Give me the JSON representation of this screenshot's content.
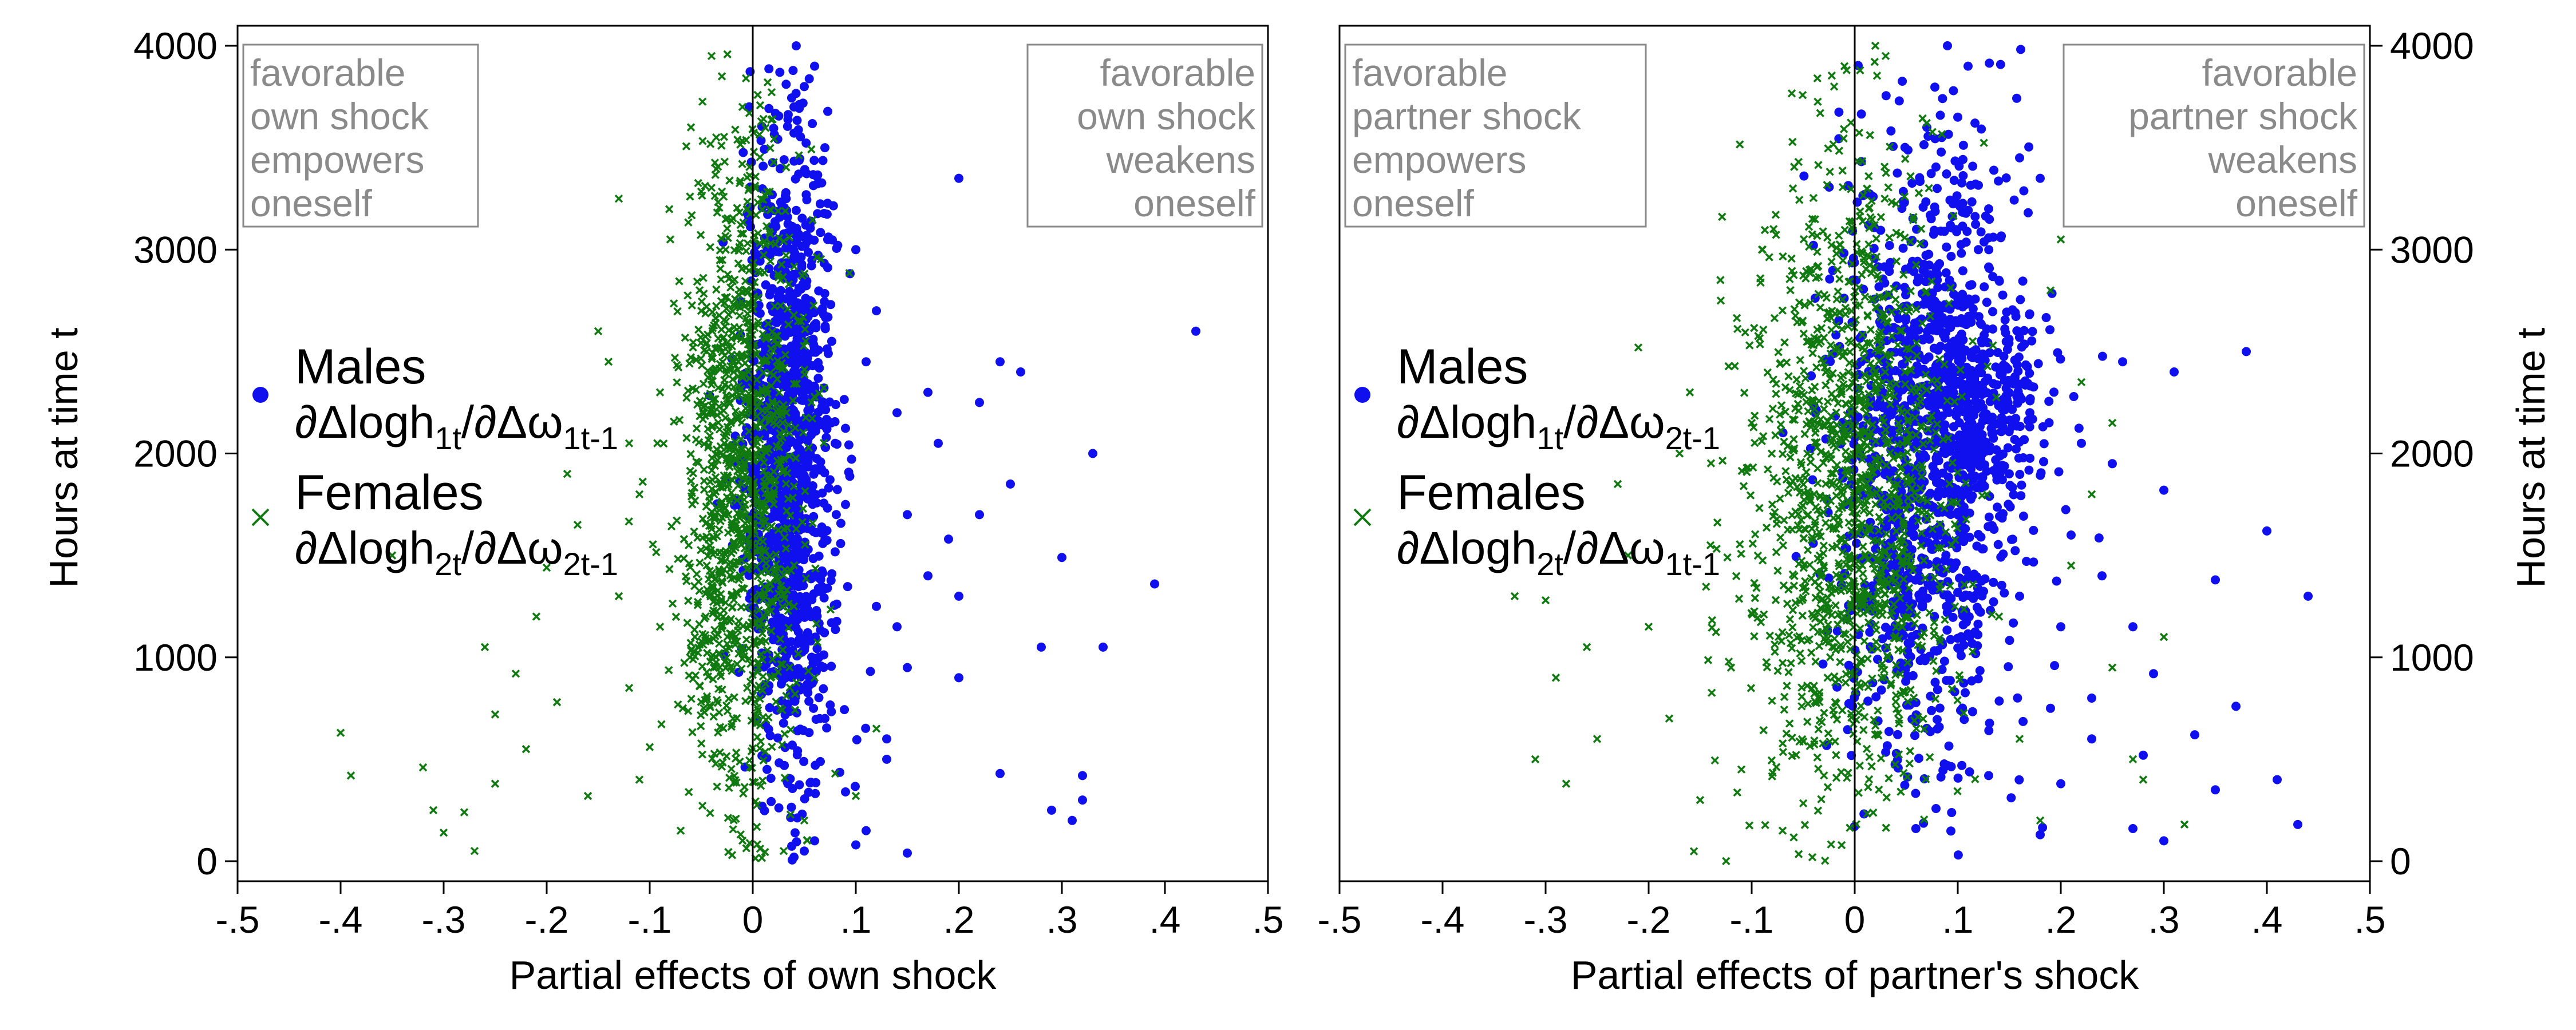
{
  "figure": {
    "marker_colors": {
      "males": "#1010ee",
      "females": "#107a10"
    },
    "axis_color": "#000000",
    "annotation_color": "#8a8a8a"
  },
  "chart_data": [
    {
      "type": "scatter",
      "id": "left",
      "xlabel": "Partial effects of own shock",
      "ylabel": "Hours at time t",
      "ylabel_side": "left",
      "xlim": [
        -0.5,
        0.5
      ],
      "ylim": [
        0,
        4000
      ],
      "xticks": [
        -0.5,
        -0.4,
        -0.3,
        -0.2,
        -0.1,
        0,
        0.1,
        0.2,
        0.3,
        0.4,
        0.5
      ],
      "xtick_labels": [
        "-.5",
        "-.4",
        "-.3",
        "-.2",
        "-.1",
        "0",
        ".1",
        ".2",
        ".3",
        ".4",
        ".5"
      ],
      "yticks": [
        0,
        1000,
        2000,
        3000,
        4000
      ],
      "ytick_labels": [
        "0",
        "1000",
        "2000",
        "3000",
        "4000"
      ],
      "reference_line_x": 0,
      "annotations": {
        "left_box": [
          "favorable",
          "own shock",
          "empowers",
          "oneself"
        ],
        "right_box": [
          "favorable",
          "own shock",
          "weakens",
          "oneself"
        ]
      },
      "legend": {
        "position": "center-left",
        "males": {
          "label": "Males",
          "sub_main": "∂Δlogh",
          "sub_a": "1t",
          "sub_mid": "/∂Δω",
          "sub_b": "1t-1"
        },
        "females": {
          "label": "Females",
          "sub_main": "∂Δlogh",
          "sub_a": "2t",
          "sub_mid": "/∂Δω",
          "sub_b": "2t-1"
        }
      },
      "series": [
        {
          "name": "Males",
          "marker": "dot",
          "color": "#1010ee",
          "points": [
            [
              0.43,
              2600
            ],
            [
              0.39,
              1360
            ],
            [
              0.32,
              300
            ],
            [
              0.33,
              2000
            ],
            [
              0.3,
              1490
            ],
            [
              0.28,
              1050
            ],
            [
              0.29,
              250
            ],
            [
              0.32,
              420
            ],
            [
              0.26,
              2400
            ],
            [
              0.24,
              2450
            ],
            [
              0.22,
              2250
            ],
            [
              0.2,
              900
            ],
            [
              0.2,
              1300
            ],
            [
              0.19,
              1580
            ],
            [
              0.17,
              1400
            ],
            [
              0.15,
              950
            ],
            [
              0.13,
              600
            ],
            [
              0.15,
              40
            ],
            [
              0.12,
              1250
            ],
            [
              0.1,
              80
            ],
            [
              0.09,
              340
            ],
            [
              0.11,
              150
            ],
            [
              0.08,
              2050
            ],
            [
              0.07,
              700
            ],
            [
              0.09,
              1750
            ],
            [
              0.24,
              430
            ],
            [
              0.34,
              1050
            ],
            [
              0.31,
              200
            ],
            [
              0.18,
              2050
            ],
            [
              0.22,
              1700
            ],
            [
              0.14,
              2200
            ],
            [
              0.12,
              2700
            ],
            [
              0.1,
              3000
            ],
            [
              0.2,
              3350
            ],
            [
              0.14,
              1150
            ],
            [
              0.25,
              1850
            ],
            [
              0.17,
              2300
            ],
            [
              0.06,
              3900
            ],
            [
              0.05,
              3800
            ],
            [
              0.04,
              3700
            ],
            [
              0.07,
              3500
            ],
            [
              0.15,
              1700
            ],
            [
              0.11,
              2450
            ],
            [
              0.13,
              500
            ],
            [
              0.06,
              100
            ],
            [
              0.05,
              50
            ],
            [
              0.04,
              20
            ]
          ],
          "cloud": {
            "x_mean": 0.035,
            "x_sd": 0.022,
            "y_mean": 2000,
            "y_sd": 780,
            "n": 1300
          }
        },
        {
          "name": "Females",
          "marker": "x",
          "color": "#107a10",
          "points": [
            [
              -0.4,
              630
            ],
            [
              -0.39,
              420
            ],
            [
              -0.32,
              460
            ],
            [
              -0.31,
              250
            ],
            [
              -0.3,
              140
            ],
            [
              -0.28,
              240
            ],
            [
              -0.27,
              50
            ],
            [
              -0.25,
              380
            ],
            [
              -0.25,
              720
            ],
            [
              -0.23,
              920
            ],
            [
              -0.21,
              1200
            ],
            [
              -0.2,
              1440
            ],
            [
              -0.19,
              780
            ],
            [
              -0.17,
              1650
            ],
            [
              -0.16,
              320
            ],
            [
              -0.13,
              3250
            ],
            [
              -0.14,
              2450
            ],
            [
              -0.12,
              2050
            ],
            [
              -0.11,
              1800
            ],
            [
              -0.1,
              560
            ],
            [
              -0.09,
              2300
            ],
            [
              -0.09,
              1150
            ],
            [
              -0.08,
              3050
            ],
            [
              -0.06,
              3600
            ],
            [
              -0.05,
              2700
            ],
            [
              -0.07,
              150
            ],
            [
              0.06,
              900
            ],
            [
              0.08,
              430
            ],
            [
              0.1,
              320
            ],
            [
              0.12,
              650
            ],
            [
              -0.35,
              1500
            ],
            [
              -0.26,
              1050
            ],
            [
              -0.22,
              550
            ],
            [
              -0.18,
              1900
            ],
            [
              -0.15,
              2600
            ],
            [
              -0.13,
              1300
            ],
            [
              -0.12,
              850
            ],
            [
              -0.11,
              400
            ],
            [
              -0.04,
              3950
            ],
            [
              -0.03,
              3850
            ],
            [
              -0.01,
              3700
            ],
            [
              0.04,
              1250
            ],
            [
              0.05,
              200
            ],
            [
              0.03,
              50
            ],
            [
              -0.02,
              30
            ]
          ],
          "cloud": {
            "x_mean": -0.012,
            "x_sd": 0.03,
            "y_mean": 1850,
            "y_sd": 820,
            "n": 1300
          }
        }
      ]
    },
    {
      "type": "scatter",
      "id": "right",
      "xlabel": "Partial effects of partner's shock",
      "ylabel": "Hours at time t",
      "ylabel_side": "right",
      "xlim": [
        -0.5,
        0.5
      ],
      "ylim": [
        0,
        4000
      ],
      "xticks": [
        -0.5,
        -0.4,
        -0.3,
        -0.2,
        -0.1,
        0,
        0.1,
        0.2,
        0.3,
        0.4,
        0.5
      ],
      "xtick_labels": [
        "-.5",
        "-.4",
        "-.3",
        "-.2",
        "-.1",
        "0",
        ".1",
        ".2",
        ".3",
        ".4",
        ".5"
      ],
      "yticks": [
        0,
        1000,
        2000,
        3000,
        4000
      ],
      "ytick_labels": [
        "0",
        "1000",
        "2000",
        "3000",
        "4000"
      ],
      "reference_line_x": 0,
      "annotations": {
        "left_box": [
          "favorable",
          "partner shock",
          "empowers",
          "oneself"
        ],
        "right_box": [
          "favorable",
          "partner shock",
          "weakens",
          "oneself"
        ]
      },
      "legend": {
        "position": "center-left",
        "males": {
          "label": "Males",
          "sub_main": "∂Δlogh",
          "sub_a": "1t",
          "sub_mid": "/∂Δω",
          "sub_b": "2t-1"
        },
        "females": {
          "label": "Females",
          "sub_main": "∂Δlogh",
          "sub_a": "2t",
          "sub_mid": "/∂Δω",
          "sub_b": "1t-1"
        }
      },
      "series": [
        {
          "name": "Males",
          "marker": "dot",
          "color": "#1010ee",
          "points": [
            [
              0.44,
              1300
            ],
            [
              0.43,
              180
            ],
            [
              0.41,
              400
            ],
            [
              0.4,
              1620
            ],
            [
              0.38,
              2500
            ],
            [
              0.37,
              760
            ],
            [
              0.35,
              1380
            ],
            [
              0.33,
              620
            ],
            [
              0.31,
              2400
            ],
            [
              0.3,
              1820
            ],
            [
              0.29,
              920
            ],
            [
              0.28,
              520
            ],
            [
              0.27,
              1150
            ],
            [
              0.26,
              2450
            ],
            [
              0.24,
              1400
            ],
            [
              0.23,
              800
            ],
            [
              0.22,
              2050
            ],
            [
              0.21,
              1600
            ],
            [
              0.2,
              1150
            ],
            [
              0.18,
              3350
            ],
            [
              0.17,
              2200
            ],
            [
              0.16,
              3450
            ],
            [
              0.15,
              1900
            ],
            [
              0.14,
              2850
            ],
            [
              0.13,
              3200
            ],
            [
              0.12,
              3000
            ],
            [
              0.11,
              3900
            ],
            [
              0.1,
              3650
            ],
            [
              0.09,
              4000
            ],
            [
              0.08,
              3300
            ],
            [
              0.07,
              3600
            ],
            [
              0.06,
              3100
            ],
            [
              0.05,
              2800
            ],
            [
              0.35,
              350
            ],
            [
              0.3,
              100
            ],
            [
              0.25,
              1950
            ],
            [
              0.19,
              750
            ],
            [
              0.16,
              1300
            ],
            [
              0.13,
              420
            ],
            [
              0.27,
              160
            ],
            [
              0.23,
              600
            ],
            [
              0.2,
              380
            ],
            [
              0.18,
              130
            ]
          ],
          "cloud": {
            "x_mean": 0.07,
            "x_sd": 0.045,
            "y_mean": 2000,
            "y_sd": 760,
            "n": 1200
          },
          "cloud2": {
            "x_mean": 0.12,
            "x_sd": 0.035,
            "y_mean": 2250,
            "y_sd": 260,
            "n": 300
          }
        },
        {
          "name": "Females",
          "marker": "x",
          "color": "#107a10",
          "points": [
            [
              -0.33,
              1300
            ],
            [
              -0.31,
              500
            ],
            [
              -0.3,
              1280
            ],
            [
              -0.29,
              900
            ],
            [
              -0.28,
              380
            ],
            [
              -0.26,
              1050
            ],
            [
              -0.25,
              600
            ],
            [
              -0.23,
              1850
            ],
            [
              -0.22,
              1500
            ],
            [
              -0.21,
              2520
            ],
            [
              -0.2,
              1150
            ],
            [
              -0.18,
              700
            ],
            [
              -0.17,
              2000
            ],
            [
              -0.16,
              2300
            ],
            [
              -0.15,
              300
            ],
            [
              -0.14,
              1550
            ],
            [
              -0.13,
              2750
            ],
            [
              -0.12,
              950
            ],
            [
              -0.11,
              450
            ],
            [
              -0.1,
              2150
            ],
            [
              -0.09,
              3000
            ],
            [
              -0.08,
              1750
            ],
            [
              -0.07,
              150
            ],
            [
              -0.06,
              3300
            ],
            [
              0.2,
              3050
            ],
            [
              0.22,
              2350
            ],
            [
              0.23,
              1800
            ],
            [
              0.25,
              950
            ],
            [
              0.28,
              400
            ],
            [
              0.32,
              180
            ],
            [
              0.3,
              1100
            ],
            [
              0.27,
              500
            ],
            [
              0.25,
              2150
            ],
            [
              0.21,
              1450
            ],
            [
              0.19,
              2800
            ],
            [
              0.18,
              200
            ],
            [
              0.16,
              600
            ],
            [
              0.14,
              1200
            ],
            [
              0.03,
              3950
            ],
            [
              0.02,
              4000
            ],
            [
              -0.01,
              3900
            ],
            [
              -0.02,
              3800
            ]
          ],
          "cloud": {
            "x_mean": -0.005,
            "x_sd": 0.05,
            "y_mean": 1800,
            "y_sd": 820,
            "n": 1400
          }
        }
      ]
    }
  ]
}
